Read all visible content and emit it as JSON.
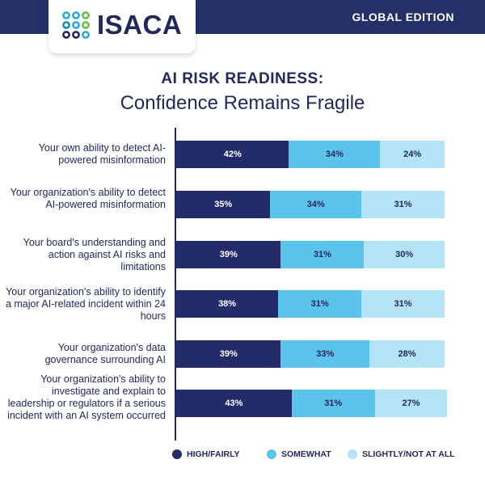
{
  "header": {
    "edition": "GLOBAL EDITION",
    "logo_text": "ISACA"
  },
  "chart_data": {
    "type": "bar",
    "orientation": "horizontal-stacked",
    "title": "AI RISK READINESS:",
    "subtitle": "Confidence Remains Fragile",
    "categories": [
      "Your own ability to detect AI-powered misinformation",
      "Your organization's ability to detect AI-powered misinformation",
      "Your board's understanding and action against AI risks and limitations",
      "Your organization's ability to identify a major AI-related incident within 24 hours",
      "Your organization's data governance surrounding AI",
      "Your organization's ability to investigate and explain to leadership or regulators if a serious incident with an AI system occurred"
    ],
    "series": [
      {
        "name": "HIGH/FAIRLY",
        "color": "#232c68",
        "values": [
          42,
          35,
          39,
          38,
          39,
          43
        ]
      },
      {
        "name": "SOMEWHAT",
        "color": "#5cc3ea",
        "values": [
          34,
          34,
          31,
          31,
          33,
          31
        ]
      },
      {
        "name": "SLIGHTLY/NOT AT ALL",
        "color": "#b4e3f5",
        "values": [
          24,
          31,
          30,
          31,
          28,
          27
        ]
      }
    ],
    "unit": "%",
    "legend": "bottom",
    "grid": false
  }
}
